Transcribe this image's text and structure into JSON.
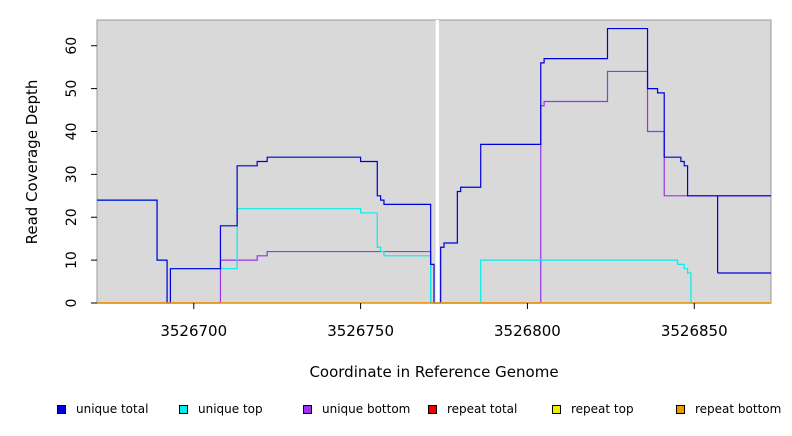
{
  "chart_data": {
    "type": "line",
    "xlabel": "Coordinate in Reference Genome",
    "ylabel": "Read Coverage Depth",
    "xlim": [
      3526671,
      3526873
    ],
    "ylim": [
      0,
      66
    ],
    "x_ticks": [
      3526700,
      3526750,
      3526800,
      3526850
    ],
    "x_tick_labels": [
      "3526700",
      "3526750",
      "3526800",
      "3526850"
    ],
    "y_ticks": [
      0,
      10,
      20,
      30,
      40,
      50,
      60
    ],
    "y_tick_labels": [
      "0",
      "10",
      "20",
      "30",
      "40",
      "50",
      "60"
    ],
    "background": "#d9d9d9",
    "grid": false,
    "legend_position": "bottom",
    "gap": {
      "from": 3526772.5,
      "to": 3526773.5,
      "color": "#ffffff"
    },
    "series": [
      {
        "name": "unique total",
        "color": "#0000dd",
        "steps": [
          [
            3526671,
            24
          ],
          [
            3526689,
            10
          ],
          [
            3526692,
            0
          ],
          [
            3526693,
            8
          ],
          [
            3526708,
            18
          ],
          [
            3526713,
            32
          ],
          [
            3526719,
            33
          ],
          [
            3526722,
            34
          ],
          [
            3526750,
            33
          ],
          [
            3526755,
            25
          ],
          [
            3526756,
            24
          ],
          [
            3526757,
            23
          ],
          [
            3526771,
            9
          ],
          [
            3526772,
            0
          ],
          [
            3526774,
            13
          ],
          [
            3526775,
            14
          ],
          [
            3526779,
            26
          ],
          [
            3526780,
            27
          ],
          [
            3526786,
            37
          ],
          [
            3526804,
            56
          ],
          [
            3526805,
            57
          ],
          [
            3526824,
            64
          ],
          [
            3526836,
            50
          ],
          [
            3526839,
            49
          ],
          [
            3526841,
            34
          ],
          [
            3526846,
            33
          ],
          [
            3526847,
            32
          ],
          [
            3526848,
            25
          ],
          [
            3526873,
            25
          ]
        ],
        "tail": [
          [
            3526857,
            7
          ],
          [
            3526873,
            7
          ]
        ]
      },
      {
        "name": "unique top",
        "color": "#00eeee",
        "steps": [
          [
            3526671,
            24
          ],
          [
            3526689,
            10
          ],
          [
            3526692,
            0
          ],
          [
            3526693,
            8
          ],
          [
            3526711,
            8
          ],
          [
            3526713,
            22
          ],
          [
            3526750,
            21
          ],
          [
            3526755,
            13
          ],
          [
            3526756,
            12
          ],
          [
            3526757,
            11
          ],
          [
            3526771,
            0
          ],
          [
            3526786,
            10
          ],
          [
            3526845,
            9
          ],
          [
            3526847,
            8
          ],
          [
            3526848,
            7
          ],
          [
            3526849,
            0
          ],
          [
            3526873,
            0
          ]
        ]
      },
      {
        "name": "unique bottom",
        "color": "#9933ee",
        "steps": [
          [
            3526671,
            0
          ],
          [
            3526708,
            10
          ],
          [
            3526719,
            11
          ],
          [
            3526722,
            12
          ],
          [
            3526771,
            0
          ],
          [
            3526804,
            46
          ],
          [
            3526805,
            47
          ],
          [
            3526824,
            54
          ],
          [
            3526836,
            40
          ],
          [
            3526841,
            25
          ],
          [
            3526873,
            25
          ]
        ]
      },
      {
        "name": "repeat total",
        "color": "#ee0000",
        "steps": [
          [
            3526671,
            0
          ],
          [
            3526873,
            0
          ]
        ]
      },
      {
        "name": "repeat top",
        "color": "#eeee00",
        "steps": [
          [
            3526671,
            0
          ],
          [
            3526873,
            0
          ]
        ]
      },
      {
        "name": "repeat bottom",
        "color": "#ee9900",
        "steps": [
          [
            3526671,
            0
          ],
          [
            3526873,
            0
          ]
        ]
      }
    ]
  },
  "legend": {
    "items": [
      {
        "label": "unique total",
        "color": "#0000dd"
      },
      {
        "label": "unique top",
        "color": "#00eeee"
      },
      {
        "label": "unique bottom",
        "color": "#9933ee"
      },
      {
        "label": "repeat total",
        "color": "#ee0000"
      },
      {
        "label": "repeat top",
        "color": "#eeee00"
      },
      {
        "label": "repeat bottom",
        "color": "#ee9900"
      }
    ]
  }
}
